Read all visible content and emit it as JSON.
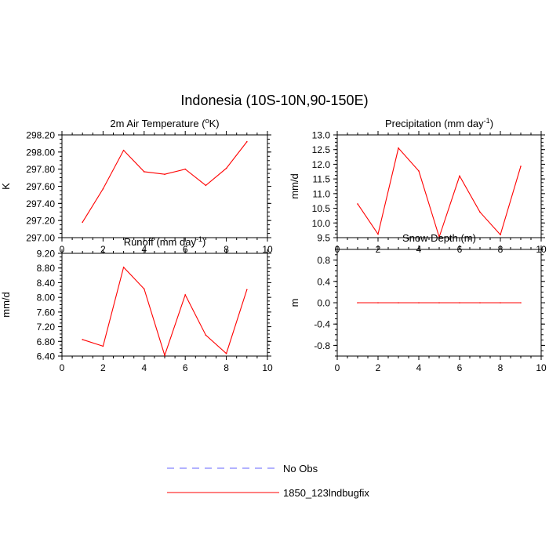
{
  "figure": {
    "title": "Indonesia (10S-10N,90-150E)"
  },
  "colors": {
    "model_line": "#ff0000",
    "obs_line": "#6666ff",
    "axis": "#000000"
  },
  "legend": {
    "placement": "bottom-center",
    "entries": [
      {
        "label": "No Obs",
        "style": "dashed",
        "color": "#6666ff"
      },
      {
        "label": "1850_123lndbugfix",
        "style": "solid",
        "color": "#ff0000"
      }
    ]
  },
  "chart_data": [
    {
      "type": "line",
      "title": "2m Air Temperature (°K)",
      "title_parts": [
        "2m Air Temperature (",
        "o",
        "K)"
      ],
      "xlabel": "",
      "ylabel": "K",
      "xlim": [
        0,
        10
      ],
      "ylim": [
        297.0,
        298.2
      ],
      "xticks": [
        0,
        2,
        4,
        6,
        8,
        10
      ],
      "xtick_labels": [
        "0",
        "2",
        "4",
        "6",
        "8",
        "10"
      ],
      "yticks": [
        297.0,
        297.2,
        297.4,
        297.6,
        297.8,
        298.0,
        298.2
      ],
      "ytick_labels": [
        "297.00",
        "297.20",
        "297.40",
        "297.60",
        "297.80",
        "298.00",
        "298.20"
      ],
      "grid": false,
      "series": [
        {
          "name": "1850_123lndbugfix",
          "x": [
            1,
            2,
            3,
            4,
            5,
            6,
            7,
            8,
            9
          ],
          "values": [
            297.18,
            297.57,
            298.02,
            297.77,
            297.74,
            297.8,
            297.61,
            297.81,
            298.12
          ]
        }
      ]
    },
    {
      "type": "line",
      "title": "Precipitation (mm day-1)",
      "title_parts": [
        "Precipitation (mm day",
        "-1",
        ")"
      ],
      "xlabel": "",
      "ylabel": "mm/d",
      "xlim": [
        0,
        10
      ],
      "ylim": [
        9.5,
        13.0
      ],
      "xticks": [
        0,
        2,
        4,
        6,
        8,
        10
      ],
      "xtick_labels": [
        "0",
        "2",
        "4",
        "6",
        "8",
        "10"
      ],
      "yticks": [
        9.5,
        10.0,
        10.5,
        11.0,
        11.5,
        12.0,
        12.5,
        13.0
      ],
      "ytick_labels": [
        "9.5",
        "10.0",
        "10.5",
        "11.0",
        "11.5",
        "12.0",
        "12.5",
        "13.0"
      ],
      "grid": false,
      "series": [
        {
          "name": "1850_123lndbugfix",
          "x": [
            1,
            2,
            3,
            4,
            5,
            6,
            7,
            8,
            9
          ],
          "values": [
            10.65,
            9.62,
            12.55,
            11.77,
            9.52,
            11.6,
            10.37,
            9.6,
            11.93
          ]
        }
      ]
    },
    {
      "type": "line",
      "title": "Runoff (mm day-1)",
      "title_parts": [
        "Runoff (mm day",
        "-1",
        ")"
      ],
      "xlabel": "",
      "ylabel": "mm/d",
      "xlim": [
        0,
        10
      ],
      "ylim": [
        6.4,
        9.2
      ],
      "xticks": [
        0,
        2,
        4,
        6,
        8,
        10
      ],
      "xtick_labels": [
        "0",
        "2",
        "4",
        "6",
        "8",
        "10"
      ],
      "yticks": [
        6.4,
        6.8,
        7.2,
        7.6,
        8.0,
        8.4,
        8.8,
        9.2
      ],
      "ytick_labels": [
        "6.40",
        "6.80",
        "7.20",
        "7.60",
        "8.00",
        "8.40",
        "8.80",
        "9.20"
      ],
      "grid": false,
      "series": [
        {
          "name": "1850_123lndbugfix",
          "x": [
            1,
            2,
            3,
            4,
            5,
            6,
            7,
            8,
            9
          ],
          "values": [
            6.85,
            6.67,
            8.82,
            8.23,
            6.42,
            8.07,
            6.97,
            6.47,
            8.21
          ]
        }
      ]
    },
    {
      "type": "line",
      "title": "Snow Depth (m)",
      "title_parts": [
        "Snow Depth (m)",
        "",
        ""
      ],
      "xlabel": "",
      "ylabel": "m",
      "xlim": [
        0,
        10
      ],
      "ylim": [
        -1.0,
        1.0
      ],
      "xticks": [
        0,
        2,
        4,
        6,
        8,
        10
      ],
      "xtick_labels": [
        "0",
        "2",
        "4",
        "6",
        "8",
        "10"
      ],
      "yticks": [
        -0.8,
        -0.4,
        0.0,
        0.4,
        0.8
      ],
      "ytick_labels": [
        "-0.8",
        "-0.4",
        "0.0",
        "0.4",
        "0.8"
      ],
      "grid": false,
      "series": [
        {
          "name": "1850_123lndbugfix",
          "x": [
            1,
            2,
            3,
            4,
            5,
            6,
            7,
            8,
            9
          ],
          "values": [
            0,
            0,
            0,
            0,
            0,
            0,
            0,
            0,
            0
          ]
        }
      ]
    }
  ]
}
